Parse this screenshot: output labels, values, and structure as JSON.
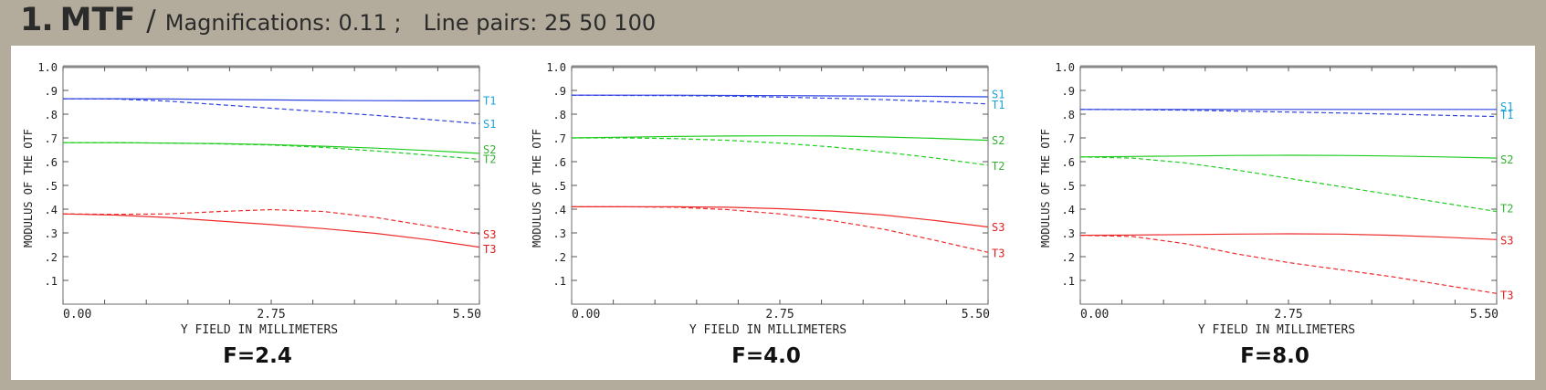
{
  "header": {
    "number": "1.",
    "title": "MTF",
    "separator": "/",
    "magnifications_label": "Magnifications: 0.11 ;",
    "line_pairs_label": "Line pairs: 25  50  100"
  },
  "colors": {
    "background": "#b3ab9b",
    "panel": "#ffffff",
    "series_1": "#2f43e0",
    "series_2": "#1fcc1f",
    "series_3": "#ee2b2b",
    "label_1": "#1aa3d9",
    "label_2": "#33b233",
    "label_3": "#e02020"
  },
  "chart_data": [
    {
      "type": "line",
      "title": "F=2.4",
      "xlabel": "Y FIELD IN MILLIMETERS",
      "ylabel": "MODULUS OF THE OTF",
      "xlim": [
        0,
        5.5
      ],
      "ylim": [
        0,
        1.0
      ],
      "xticks": [
        "0.00",
        "2.75",
        "5.50"
      ],
      "yticks": [
        "1.0",
        ".9",
        ".8",
        ".7",
        ".6",
        ".5",
        ".4",
        ".3",
        ".2",
        ".1"
      ],
      "grid": false,
      "series": [
        {
          "name": "T1",
          "style": "solid",
          "color_key": "series_1",
          "x": [
            0,
            0.69,
            1.38,
            2.06,
            2.75,
            3.44,
            4.13,
            4.81,
            5.5
          ],
          "y": [
            0.865,
            0.865,
            0.864,
            0.862,
            0.86,
            0.858,
            0.857,
            0.856,
            0.856
          ]
        },
        {
          "name": "S1",
          "style": "dashed",
          "color_key": "series_1",
          "x": [
            0,
            0.69,
            1.38,
            2.06,
            2.75,
            3.44,
            4.13,
            4.81,
            5.5
          ],
          "y": [
            0.865,
            0.864,
            0.855,
            0.84,
            0.825,
            0.81,
            0.795,
            0.778,
            0.76
          ]
        },
        {
          "name": "S2",
          "style": "solid",
          "color_key": "series_2",
          "x": [
            0,
            0.69,
            1.38,
            2.06,
            2.75,
            3.44,
            4.13,
            4.81,
            5.5
          ],
          "y": [
            0.68,
            0.68,
            0.678,
            0.676,
            0.672,
            0.665,
            0.657,
            0.647,
            0.635
          ]
        },
        {
          "name": "T2",
          "style": "dashed",
          "color_key": "series_2",
          "x": [
            0,
            0.69,
            1.38,
            2.06,
            2.75,
            3.44,
            4.13,
            4.81,
            5.5
          ],
          "y": [
            0.68,
            0.68,
            0.678,
            0.675,
            0.67,
            0.66,
            0.645,
            0.628,
            0.61
          ]
        },
        {
          "name": "S3",
          "style": "dashed",
          "color_key": "series_3",
          "x": [
            0,
            0.69,
            1.38,
            2.06,
            2.75,
            3.44,
            4.13,
            4.81,
            5.5
          ],
          "y": [
            0.38,
            0.378,
            0.38,
            0.39,
            0.398,
            0.39,
            0.365,
            0.33,
            0.295
          ]
        },
        {
          "name": "T3",
          "style": "solid",
          "color_key": "series_3",
          "x": [
            0,
            0.69,
            1.38,
            2.06,
            2.75,
            3.44,
            4.13,
            4.81,
            5.5
          ],
          "y": [
            0.38,
            0.375,
            0.365,
            0.35,
            0.335,
            0.318,
            0.298,
            0.272,
            0.24
          ]
        }
      ],
      "end_labels": [
        {
          "text": "T1",
          "y": 0.86,
          "color_key": "label_1"
        },
        {
          "text": "S1",
          "y": 0.762,
          "color_key": "label_1"
        },
        {
          "text": "S2",
          "y": 0.653,
          "color_key": "label_2"
        },
        {
          "text": "T2",
          "y": 0.613,
          "color_key": "label_2"
        },
        {
          "text": "S3",
          "y": 0.297,
          "color_key": "label_3"
        },
        {
          "text": "T3",
          "y": 0.235,
          "color_key": "label_3"
        }
      ]
    },
    {
      "type": "line",
      "title": "F=4.0",
      "xlabel": "Y FIELD IN MILLIMETERS",
      "ylabel": "MODULUS OF THE OTF",
      "xlim": [
        0,
        5.5
      ],
      "ylim": [
        0,
        1.0
      ],
      "xticks": [
        "0.00",
        "2.75",
        "5.50"
      ],
      "yticks": [
        "1.0",
        ".9",
        ".8",
        ".7",
        ".6",
        ".5",
        ".4",
        ".3",
        ".2",
        ".1"
      ],
      "grid": false,
      "series": [
        {
          "name": "S1",
          "style": "solid",
          "color_key": "series_1",
          "x": [
            0,
            0.69,
            1.38,
            2.06,
            2.75,
            3.44,
            4.13,
            4.81,
            5.5
          ],
          "y": [
            0.88,
            0.88,
            0.88,
            0.879,
            0.878,
            0.877,
            0.876,
            0.875,
            0.873
          ]
        },
        {
          "name": "T1",
          "style": "dashed",
          "color_key": "series_1",
          "x": [
            0,
            0.69,
            1.38,
            2.06,
            2.75,
            3.44,
            4.13,
            4.81,
            5.5
          ],
          "y": [
            0.88,
            0.879,
            0.878,
            0.876,
            0.872,
            0.867,
            0.861,
            0.853,
            0.843
          ]
        },
        {
          "name": "S2",
          "style": "solid",
          "color_key": "series_2",
          "x": [
            0,
            0.69,
            1.38,
            2.06,
            2.75,
            3.44,
            4.13,
            4.81,
            5.5
          ],
          "y": [
            0.7,
            0.703,
            0.706,
            0.708,
            0.709,
            0.708,
            0.704,
            0.698,
            0.69
          ]
        },
        {
          "name": "T2",
          "style": "dashed",
          "color_key": "series_2",
          "x": [
            0,
            0.69,
            1.38,
            2.06,
            2.75,
            3.44,
            4.13,
            4.81,
            5.5
          ],
          "y": [
            0.7,
            0.7,
            0.697,
            0.69,
            0.678,
            0.662,
            0.64,
            0.615,
            0.585
          ]
        },
        {
          "name": "S3",
          "style": "solid",
          "color_key": "series_3",
          "x": [
            0,
            0.69,
            1.38,
            2.06,
            2.75,
            3.44,
            4.13,
            4.81,
            5.5
          ],
          "y": [
            0.41,
            0.41,
            0.41,
            0.408,
            0.402,
            0.392,
            0.375,
            0.352,
            0.325
          ]
        },
        {
          "name": "T3",
          "style": "dashed",
          "color_key": "series_3",
          "x": [
            0,
            0.69,
            1.38,
            2.06,
            2.75,
            3.44,
            4.13,
            4.81,
            5.5
          ],
          "y": [
            0.41,
            0.41,
            0.408,
            0.398,
            0.38,
            0.352,
            0.315,
            0.268,
            0.218
          ]
        }
      ],
      "end_labels": [
        {
          "text": "S1",
          "y": 0.887,
          "color_key": "label_1"
        },
        {
          "text": "T1",
          "y": 0.842,
          "color_key": "label_1"
        },
        {
          "text": "S2",
          "y": 0.692,
          "color_key": "label_2"
        },
        {
          "text": "T2",
          "y": 0.585,
          "color_key": "label_2"
        },
        {
          "text": "S3",
          "y": 0.327,
          "color_key": "label_3"
        },
        {
          "text": "T3",
          "y": 0.218,
          "color_key": "label_3"
        }
      ]
    },
    {
      "type": "line",
      "title": "F=8.0",
      "xlabel": "Y FIELD IN MILLIMETERS",
      "ylabel": "MODULUS OF THE OTF",
      "xlim": [
        0,
        5.5
      ],
      "ylim": [
        0,
        1.0
      ],
      "xticks": [
        "0.00",
        "2.75",
        "5.50"
      ],
      "yticks": [
        "1.0",
        ".9",
        ".8",
        ".7",
        ".6",
        ".5",
        ".4",
        ".3",
        ".2",
        ".1"
      ],
      "grid": false,
      "series": [
        {
          "name": "S1",
          "style": "solid",
          "color_key": "series_1",
          "x": [
            0,
            0.69,
            1.38,
            2.06,
            2.75,
            3.44,
            4.13,
            4.81,
            5.5
          ],
          "y": [
            0.82,
            0.82,
            0.82,
            0.82,
            0.82,
            0.82,
            0.82,
            0.82,
            0.82
          ]
        },
        {
          "name": "T1",
          "style": "dashed",
          "color_key": "series_1",
          "x": [
            0,
            0.69,
            1.38,
            2.06,
            2.75,
            3.44,
            4.13,
            4.81,
            5.5
          ],
          "y": [
            0.82,
            0.819,
            0.817,
            0.813,
            0.809,
            0.805,
            0.8,
            0.795,
            0.79
          ]
        },
        {
          "name": "S2",
          "style": "solid",
          "color_key": "series_2",
          "x": [
            0,
            0.69,
            1.38,
            2.06,
            2.75,
            3.44,
            4.13,
            4.81,
            5.5
          ],
          "y": [
            0.62,
            0.622,
            0.624,
            0.626,
            0.627,
            0.626,
            0.624,
            0.62,
            0.615
          ]
        },
        {
          "name": "T2",
          "style": "dashed",
          "color_key": "series_2",
          "x": [
            0,
            0.69,
            1.38,
            2.06,
            2.75,
            3.44,
            4.13,
            4.81,
            5.5
          ],
          "y": [
            0.62,
            0.615,
            0.595,
            0.565,
            0.53,
            0.495,
            0.46,
            0.425,
            0.39
          ]
        },
        {
          "name": "S3",
          "style": "solid",
          "color_key": "series_3",
          "x": [
            0,
            0.69,
            1.38,
            2.06,
            2.75,
            3.44,
            4.13,
            4.81,
            5.5
          ],
          "y": [
            0.29,
            0.291,
            0.293,
            0.295,
            0.296,
            0.295,
            0.29,
            0.282,
            0.272
          ]
        },
        {
          "name": "T3",
          "style": "dashed",
          "color_key": "series_3",
          "x": [
            0,
            0.69,
            1.38,
            2.06,
            2.75,
            3.44,
            4.13,
            4.81,
            5.5
          ],
          "y": [
            0.29,
            0.285,
            0.255,
            0.212,
            0.175,
            0.145,
            0.115,
            0.08,
            0.045
          ]
        }
      ],
      "end_labels": [
        {
          "text": "S1",
          "y": 0.835,
          "color_key": "label_1"
        },
        {
          "text": "T1",
          "y": 0.8,
          "color_key": "label_1"
        },
        {
          "text": "S2",
          "y": 0.612,
          "color_key": "label_2"
        },
        {
          "text": "T2",
          "y": 0.405,
          "color_key": "label_2"
        },
        {
          "text": "S3",
          "y": 0.272,
          "color_key": "label_3"
        },
        {
          "text": "T3",
          "y": 0.04,
          "color_key": "label_3"
        }
      ]
    }
  ]
}
